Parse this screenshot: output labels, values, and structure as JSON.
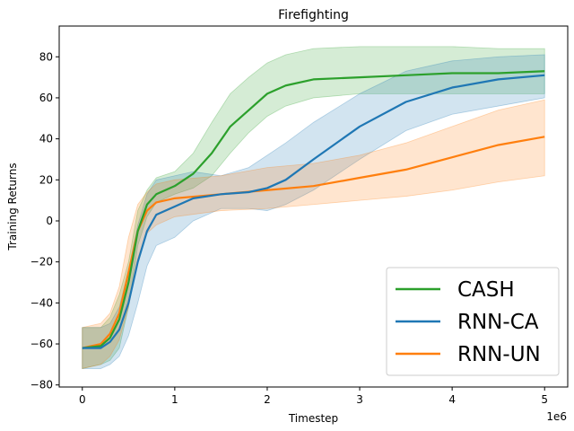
{
  "chart_data": {
    "type": "line",
    "title": "Firefighting",
    "xlabel": "Timestep",
    "ylabel": "Training Returns",
    "x_offset_label": "1e6",
    "xlim": [
      -0.25,
      5.25
    ],
    "ylim": [
      -81,
      95
    ],
    "x_ticks": [
      0,
      1,
      2,
      3,
      4,
      5
    ],
    "x_tick_labels": [
      "0",
      "1",
      "2",
      "3",
      "4",
      "5"
    ],
    "y_ticks": [
      -80,
      -60,
      -40,
      -20,
      0,
      20,
      40,
      60,
      80
    ],
    "y_tick_labels": [
      "−80",
      "−60",
      "−40",
      "−20",
      "0",
      "20",
      "40",
      "60",
      "80"
    ],
    "grid": false,
    "legend_position": "lower-right",
    "series": [
      {
        "name": "CASH",
        "color": "#2ca02c",
        "x": [
          0,
          0.2,
          0.3,
          0.4,
          0.5,
          0.6,
          0.7,
          0.8,
          1.0,
          1.2,
          1.4,
          1.6,
          1.8,
          2.0,
          2.2,
          2.5,
          3.0,
          3.5,
          4.0,
          4.5,
          5.0
        ],
        "y": [
          -62,
          -61,
          -57,
          -48,
          -30,
          -5,
          8,
          13,
          17,
          23,
          33,
          46,
          54,
          62,
          66,
          69,
          70,
          71,
          72,
          72,
          73
        ],
        "lower": [
          -72,
          -70,
          -68,
          -62,
          -42,
          -12,
          2,
          9,
          13,
          16,
          22,
          33,
          43,
          51,
          56,
          60,
          62,
          62,
          62,
          62,
          62
        ],
        "upper": [
          -52,
          -52,
          -47,
          -36,
          -20,
          5,
          15,
          21,
          24,
          33,
          48,
          62,
          70,
          77,
          81,
          84,
          85,
          85,
          85,
          84,
          84
        ]
      },
      {
        "name": "RNN-CA",
        "color": "#1f77b4",
        "x": [
          0,
          0.2,
          0.3,
          0.4,
          0.5,
          0.6,
          0.7,
          0.8,
          1.0,
          1.2,
          1.5,
          1.8,
          2.0,
          2.2,
          2.5,
          3.0,
          3.5,
          4.0,
          4.5,
          5.0
        ],
        "y": [
          -62,
          -62,
          -59,
          -53,
          -40,
          -20,
          -5,
          3,
          7,
          11,
          13,
          14,
          16,
          20,
          30,
          46,
          58,
          65,
          69,
          71
        ],
        "lower": [
          -72,
          -72,
          -70,
          -66,
          -56,
          -40,
          -22,
          -12,
          -8,
          0,
          6,
          6,
          5,
          8,
          15,
          30,
          44,
          52,
          56,
          60
        ],
        "upper": [
          -52,
          -52,
          -50,
          -42,
          -24,
          -2,
          13,
          20,
          22,
          24,
          22,
          26,
          32,
          38,
          48,
          62,
          73,
          78,
          80,
          81
        ]
      },
      {
        "name": "RNN-UN",
        "color": "#ff7f0e",
        "x": [
          0,
          0.2,
          0.3,
          0.4,
          0.5,
          0.6,
          0.7,
          0.8,
          1.0,
          1.5,
          2.0,
          2.5,
          3.0,
          3.5,
          4.0,
          4.5,
          5.0
        ],
        "y": [
          -62,
          -60,
          -55,
          -45,
          -25,
          -5,
          5,
          9,
          11,
          13,
          15,
          17,
          21,
          25,
          31,
          37,
          41
        ],
        "lower": [
          -72,
          -70,
          -66,
          -58,
          -42,
          -18,
          -6,
          -2,
          2,
          5,
          6,
          8,
          10,
          12,
          15,
          19,
          22
        ],
        "upper": [
          -52,
          -50,
          -45,
          -32,
          -8,
          8,
          14,
          18,
          20,
          22,
          26,
          28,
          32,
          38,
          46,
          54,
          59
        ]
      }
    ]
  }
}
